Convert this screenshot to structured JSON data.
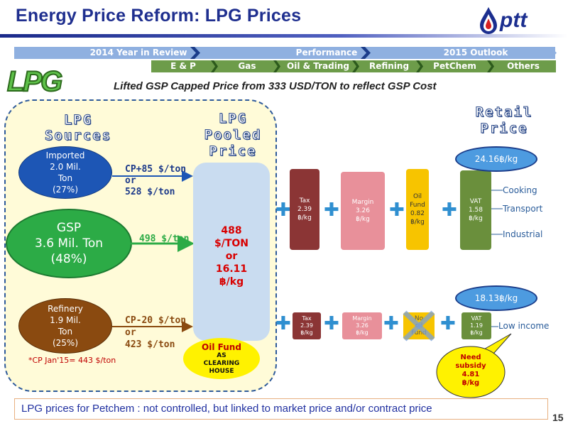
{
  "title": "Energy Price Reform: LPG Prices",
  "brand": {
    "text": "ptt"
  },
  "nav_top": [
    "2014 Year in Review",
    "Performance",
    "2015 Outlook"
  ],
  "nav_sub": [
    "E & P",
    "Gas",
    "Oil & Trading",
    "Refining",
    "PetChem",
    "Others"
  ],
  "lpg_logo": "LPG",
  "subtitle": "Lifted GSP Capped Price  from 333 USD/TON to reflect GSP Cost",
  "sources_heading": [
    "LPG",
    "Sources"
  ],
  "pooled_heading": [
    "LPG",
    "Pooled",
    "Price"
  ],
  "retail_heading": [
    "Retail",
    "Price"
  ],
  "sources": {
    "imported": [
      "Imported",
      "2.0 Mil.",
      "Ton",
      "(27%)"
    ],
    "gsp": [
      "GSP",
      "3.6 Mil. Ton",
      "(48%)"
    ],
    "refinery": [
      "Refinery",
      "1.9 Mil.",
      "Ton",
      "(25%)"
    ]
  },
  "arrow_labels": {
    "imported": [
      "CP+85 $/ton",
      "or",
      "528 $/ton"
    ],
    "gsp": "498 $/ton",
    "refinery": [
      "CP-20 $/ton",
      "or",
      "423 $/ton"
    ]
  },
  "cp_note": "*CP Jan'15= 443 $/ton",
  "pooled_price": [
    "488",
    "$/TON",
    "or",
    "16.11",
    "฿/kg"
  ],
  "oil_fund": {
    "title": "Oil Fund",
    "line2": "AS",
    "line3": "CLEARING",
    "line4": "HOUSE"
  },
  "row1": {
    "tax": [
      "Tax",
      "2.39",
      "฿/kg"
    ],
    "margin": [
      "Margin",
      "3.26",
      "฿/kg"
    ],
    "oilfund": [
      "Oil",
      "Fund",
      "0.82",
      "฿/kg"
    ],
    "vat": [
      "VAT",
      "1.58",
      "฿/kg"
    ],
    "retail": "24.16฿/kg",
    "uses": [
      "Cooking",
      "Transport",
      "Industrial"
    ]
  },
  "row2": {
    "tax": [
      "Tax",
      "2.39",
      "฿/kg"
    ],
    "margin": [
      "Margin",
      "3.26",
      "฿/kg"
    ],
    "oilfund": [
      "No",
      "oil",
      "Fund"
    ],
    "vat": [
      "VAT",
      "1.19",
      "฿/kg"
    ],
    "retail": "18.13฿/kg",
    "uses": [
      "Low income"
    ]
  },
  "subsidy": [
    "Need",
    "subsidy",
    "4.81",
    "฿/kg"
  ],
  "footer": "LPG prices for Petchem : not controlled, but linked to market price and/or contract price",
  "page_number": "15",
  "colors": {
    "title": "#1f2f8f",
    "tax": "#8b3535",
    "margin": "#e8909a",
    "oilfund": "#f7c400",
    "vat": "#6a8f3c",
    "plus": "#2f8fd0"
  }
}
